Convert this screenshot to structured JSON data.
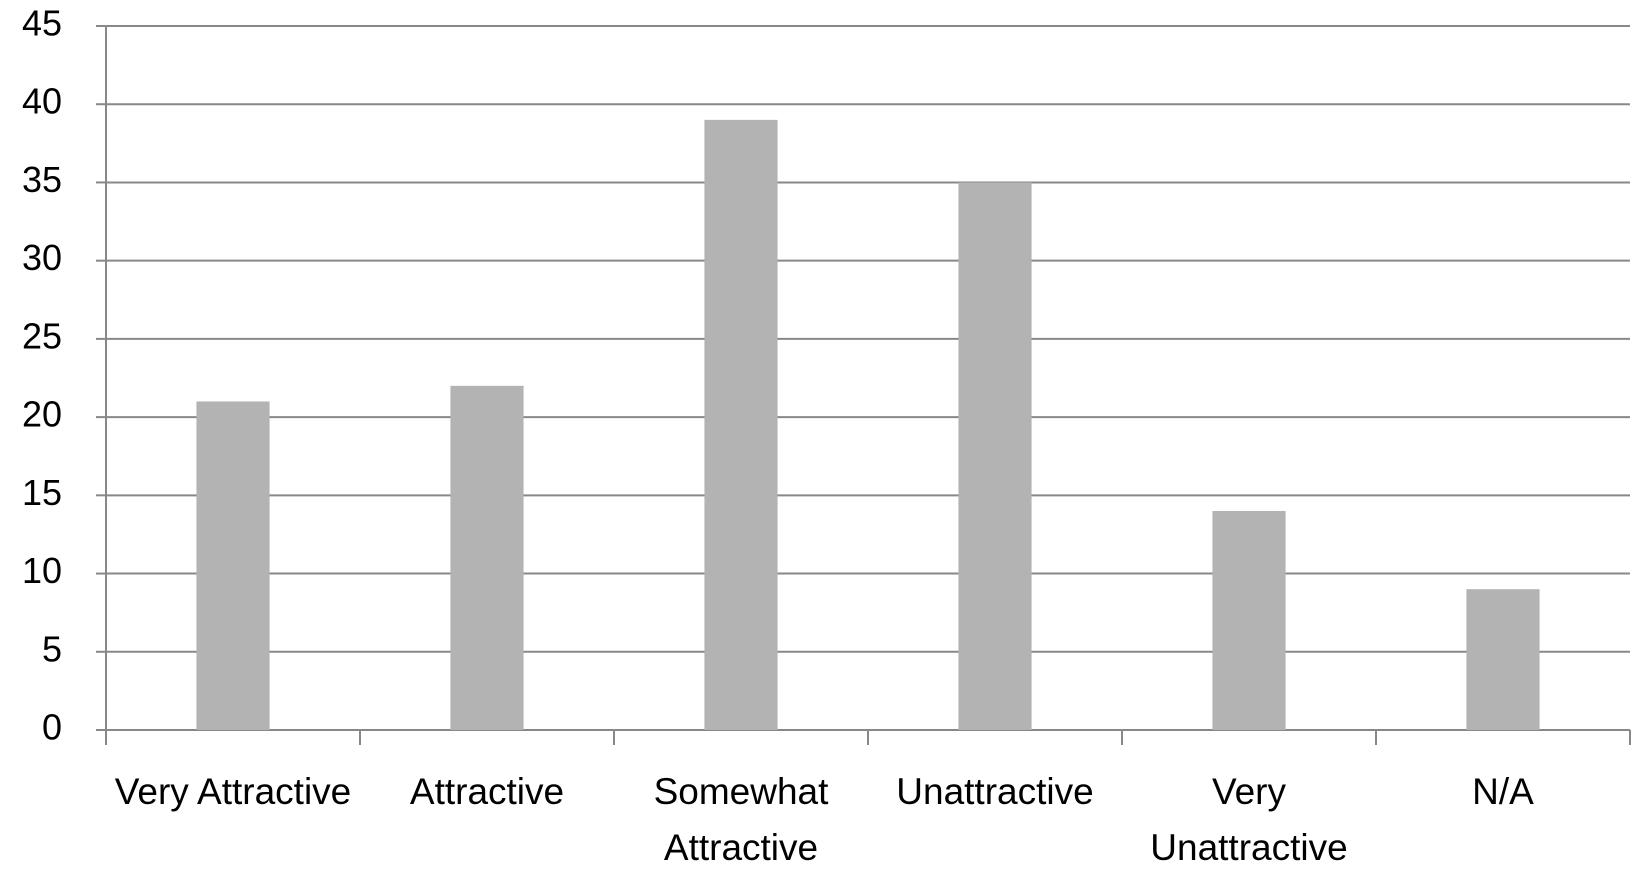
{
  "chart_data": {
    "type": "bar",
    "categories": [
      "Very Attractive",
      "Attractive",
      "Somewhat Attractive",
      "Unattractive",
      "Very Unattractive",
      "N/A"
    ],
    "values": [
      21,
      22,
      39,
      35,
      14,
      9
    ],
    "color": "#b3b3b3",
    "ylim": [
      0,
      45
    ],
    "yticks": [
      0,
      5,
      10,
      15,
      20,
      25,
      30,
      35,
      40,
      45
    ],
    "grid": true
  }
}
